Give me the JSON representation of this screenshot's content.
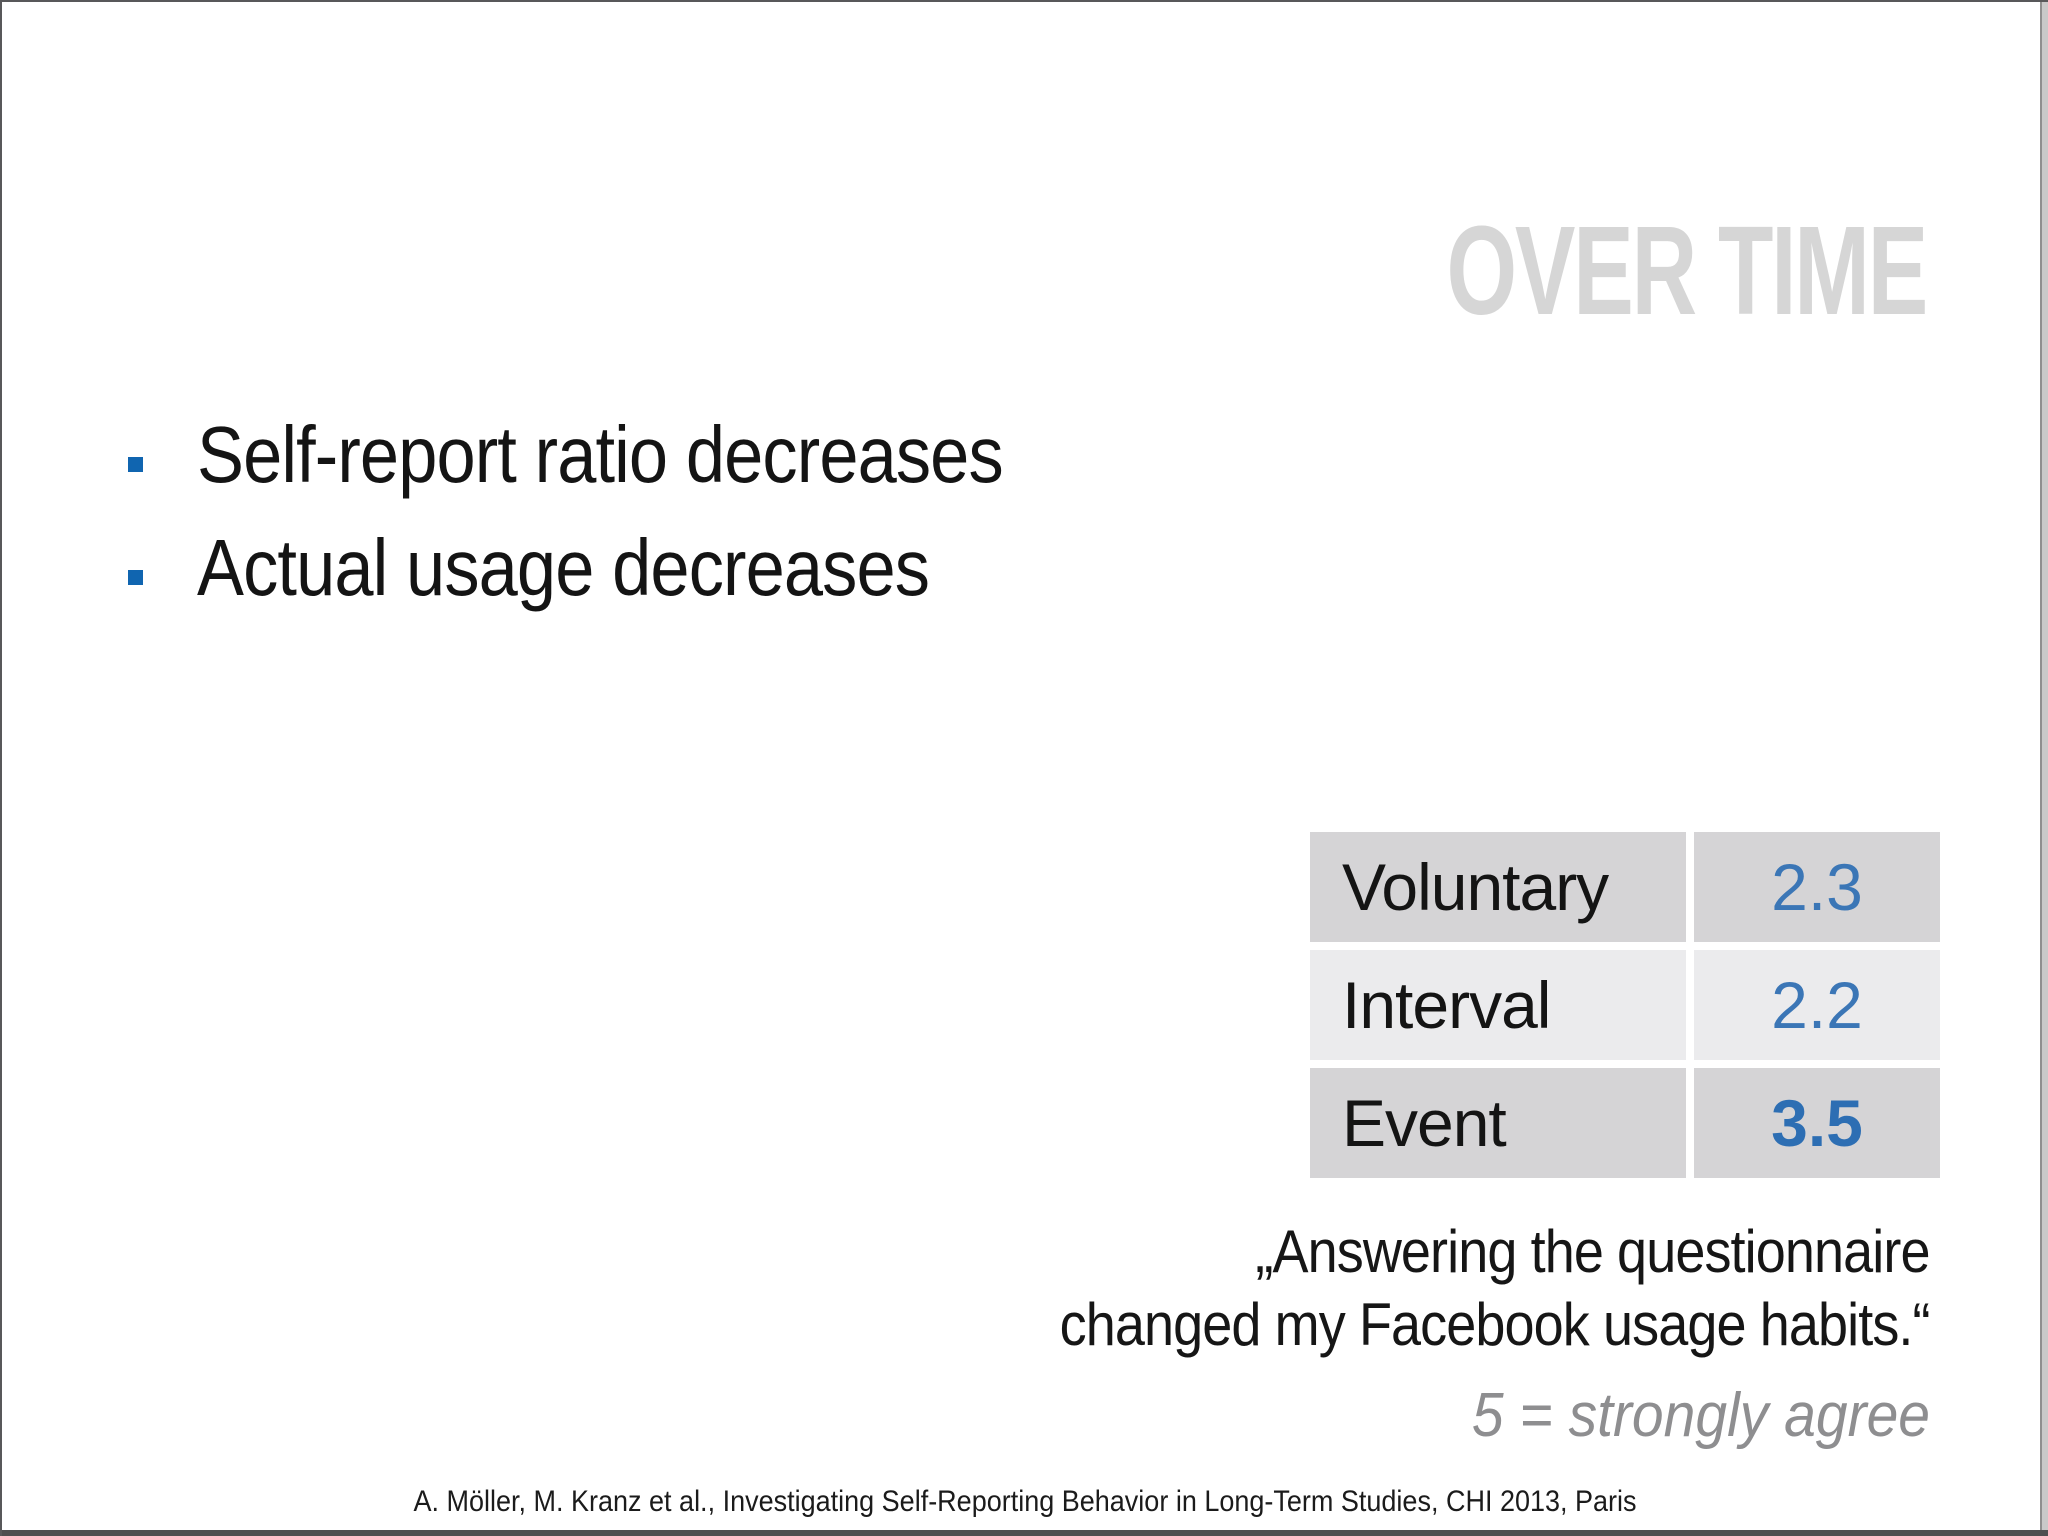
{
  "slide": {
    "title": "OVER TIME",
    "bullets": [
      "Self-report ratio decreases",
      "Actual usage decreases"
    ],
    "table": {
      "rows": [
        {
          "label": "Voluntary",
          "value": "2.3"
        },
        {
          "label": "Interval",
          "value": "2.2"
        },
        {
          "label": "Event",
          "value": "3.5"
        }
      ]
    },
    "quote": {
      "lines": [
        "„Answering the questionnaire",
        "changed my Facebook usage habits.“"
      ]
    },
    "scale_note": "5 = strongly agree",
    "footer": "A. Möller, M. Kranz et al., Investigating Self-Reporting Behavior in Long-Term Studies, CHI 2013, Paris"
  },
  "colors": {
    "title_gray": "#d6d6d6",
    "bullet_blue": "#1065b0",
    "value_blue": "#3b76b6",
    "value_bold_blue": "#2d6eb3",
    "row_dark": "#d5d4d6",
    "row_light": "#ebebed",
    "note_gray": "#8e8e90"
  }
}
